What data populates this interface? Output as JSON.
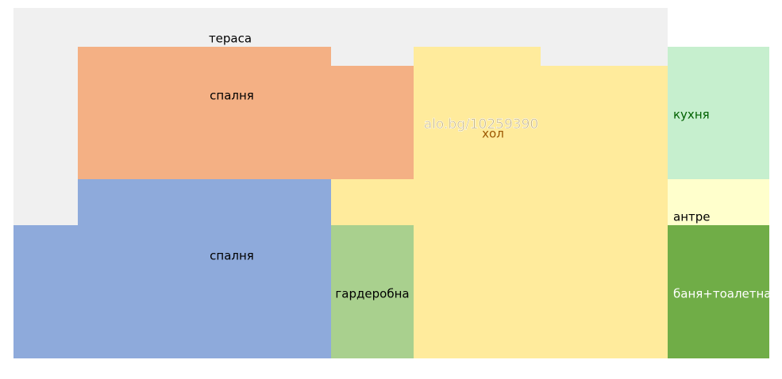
{
  "rooms": [
    {
      "label": "тераса"
    },
    {
      "label": "спалня"
    },
    {
      "label": "спалня"
    },
    {
      "label": "гардеробна"
    },
    {
      "label": "хол"
    },
    {
      "label": "кухня"
    },
    {
      "label": "антре"
    },
    {
      "label": "баня+тоалетна"
    }
  ],
  "watermark": "alo.bg/10259390"
}
